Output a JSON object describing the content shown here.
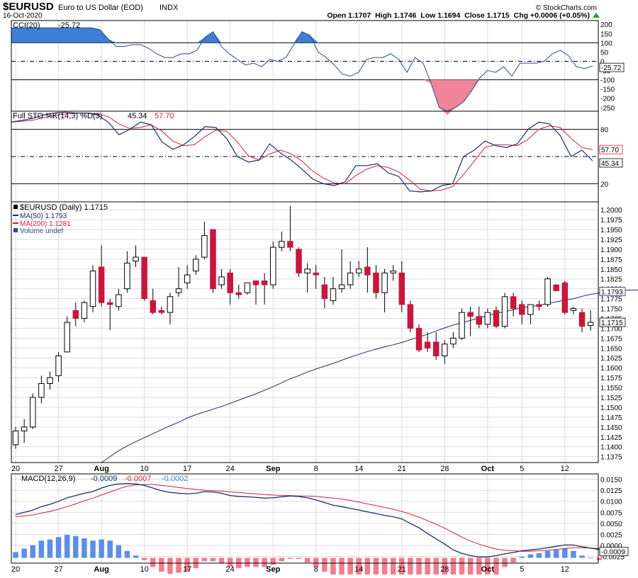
{
  "header": {
    "symbol": "$EURUSD",
    "description": "Euro to US Dollar (EOD)",
    "exchange": "INDX",
    "date": "16-Oct-2020",
    "ohlc_text": "Open 1.1707  High 1.1746  Low 1.1694  Close 1.1715  Chg +0.0006 (+0.05%)",
    "watermark": "© StockCharts.com",
    "change_arrow_icon": "up-triangle-icon"
  },
  "colors": {
    "frame": "#000000",
    "grid": "#dcdcdc",
    "line_primary": "#1c2d6b",
    "line_secondary": "#d11f3c",
    "candle_down": "#c8163c",
    "candle_up": "#ffffff",
    "cci_fill_above": "#3d7fd6",
    "cci_fill_below": "#f0849a",
    "macd_hist_pos": "#5b8ee6",
    "macd_hist_neg": "#f07c8e",
    "signal_label_color": "#3b88c8"
  },
  "chart_data": [
    {
      "type": "line",
      "panel": "cci",
      "legend_label": "CCI(20)",
      "legend_value": "-25.72",
      "last_value_label": "-25.72",
      "y_ticks": [
        "200",
        "150",
        "100",
        "50",
        "0",
        "-50",
        "-100",
        "-150",
        "-200",
        "-250"
      ],
      "ylim": [
        -270,
        220
      ],
      "reference_lines": [
        100,
        -100
      ],
      "dashed_line": 0,
      "series": [
        {
          "name": "CCI(20)",
          "values": [
            180,
            180,
            180,
            180,
            180,
            180,
            180,
            180,
            180,
            180,
            180,
            170,
            120,
            80,
            80,
            90,
            90,
            70,
            40,
            20,
            20,
            40,
            40,
            60,
            130,
            160,
            80,
            40,
            10,
            -20,
            -10,
            -30,
            10,
            0,
            20,
            90,
            160,
            140,
            50,
            20,
            -20,
            -70,
            -80,
            -60,
            10,
            20,
            20,
            40,
            10,
            -60,
            20,
            -10,
            -120,
            -250,
            -290,
            -250,
            -220,
            -160,
            -90,
            -50,
            -60,
            -30,
            -80,
            -10,
            -10,
            -10,
            0,
            40,
            60,
            30,
            -30,
            -40,
            -25.72
          ]
        }
      ]
    },
    {
      "type": "line",
      "panel": "stochastic",
      "legend_label": "Full STO %K(14,3) %D(3)",
      "legend_k_value": "45.34",
      "legend_d_value": "57.70",
      "value_label_d": "57.70",
      "value_label_k": "45.34",
      "y_ticks": [
        "80",
        "20"
      ],
      "ylim": [
        0,
        100
      ],
      "reference_lines": [
        80,
        20
      ],
      "dashed_line": 50,
      "series": [
        {
          "name": "%K",
          "values": [
            88,
            90,
            92,
            96,
            98,
            99,
            98,
            98,
            96,
            88,
            74,
            80,
            88,
            85,
            66,
            58,
            63,
            72,
            83,
            82,
            70,
            50,
            44,
            46,
            64,
            54,
            46,
            36,
            25,
            20,
            18,
            22,
            40,
            40,
            42,
            32,
            28,
            12,
            11,
            12,
            18,
            20,
            50,
            57,
            67,
            62,
            60,
            64,
            80,
            88,
            86,
            73,
            50,
            57,
            45.34
          ]
        },
        {
          "name": "%D",
          "values": [
            88,
            89,
            90,
            93,
            95,
            97,
            98,
            98,
            97,
            94,
            86,
            81,
            82,
            85,
            78,
            67,
            62,
            63,
            72,
            79,
            78,
            66,
            51,
            46,
            53,
            57,
            53,
            45,
            34,
            26,
            21,
            20,
            29,
            36,
            40,
            38,
            33,
            24,
            14,
            12,
            13,
            17,
            30,
            45,
            60,
            63,
            63,
            62,
            69,
            80,
            84,
            82,
            70,
            60,
            57.7
          ]
        }
      ]
    },
    {
      "type": "candlestick",
      "panel": "price",
      "legend_price": "$EURUSD (Daily) 1.1715",
      "legend_ma50": "MA(50) 1.1793",
      "legend_ma200": "MA(200) 1.1281",
      "legend_volume": "Volume undef",
      "last_label_close": "1.1715",
      "last_label_ma50": "1.1793",
      "y_ticks": [
        "1.2000",
        "1.1975",
        "1.1950",
        "1.1925",
        "1.1900",
        "1.1875",
        "1.1850",
        "1.1825",
        "1.1800",
        "1.1775",
        "1.1750",
        "1.1725",
        "1.1700",
        "1.1675",
        "1.1650",
        "1.1625",
        "1.1600",
        "1.1575",
        "1.1550",
        "1.1525",
        "1.1500",
        "1.1475",
        "1.1450",
        "1.1425",
        "1.1400",
        "1.1375"
      ],
      "ylim": [
        1.136,
        1.202
      ],
      "x_tick_labels": [
        "20",
        "27",
        "Aug",
        "10",
        "17",
        "24",
        "Sep",
        "8",
        "14",
        "21",
        "28",
        "Oct",
        "5",
        "12"
      ],
      "x_tick_index": [
        0,
        5,
        10,
        15,
        20,
        25,
        30,
        35,
        40,
        45,
        50,
        55,
        59,
        64
      ],
      "x_tick_bold": [
        false,
        false,
        true,
        false,
        false,
        false,
        true,
        false,
        false,
        false,
        false,
        true,
        false,
        false
      ],
      "candles": [
        {
          "o": 1.1405,
          "h": 1.145,
          "l": 1.1395,
          "c": 1.144
        },
        {
          "o": 1.144,
          "h": 1.147,
          "l": 1.141,
          "c": 1.145
        },
        {
          "o": 1.145,
          "h": 1.1535,
          "l": 1.1445,
          "c": 1.1525
        },
        {
          "o": 1.1525,
          "h": 1.158,
          "l": 1.151,
          "c": 1.156
        },
        {
          "o": 1.156,
          "h": 1.159,
          "l": 1.1545,
          "c": 1.1575
        },
        {
          "o": 1.158,
          "h": 1.164,
          "l": 1.1565,
          "c": 1.163
        },
        {
          "o": 1.164,
          "h": 1.173,
          "l": 1.164,
          "c": 1.1715
        },
        {
          "o": 1.1745,
          "h": 1.1765,
          "l": 1.1705,
          "c": 1.1725
        },
        {
          "o": 1.1725,
          "h": 1.177,
          "l": 1.1715,
          "c": 1.1765
        },
        {
          "o": 1.1755,
          "h": 1.186,
          "l": 1.174,
          "c": 1.1845
        },
        {
          "o": 1.1855,
          "h": 1.191,
          "l": 1.1755,
          "c": 1.1765
        },
        {
          "o": 1.1765,
          "h": 1.1775,
          "l": 1.1695,
          "c": 1.176
        },
        {
          "o": 1.1755,
          "h": 1.18,
          "l": 1.1745,
          "c": 1.1785
        },
        {
          "o": 1.18,
          "h": 1.1895,
          "l": 1.179,
          "c": 1.1865
        },
        {
          "o": 1.187,
          "h": 1.191,
          "l": 1.1855,
          "c": 1.188
        },
        {
          "o": 1.188,
          "h": 1.188,
          "l": 1.177,
          "c": 1.1775
        },
        {
          "o": 1.177,
          "h": 1.18,
          "l": 1.1735,
          "c": 1.174
        },
        {
          "o": 1.1745,
          "h": 1.1755,
          "l": 1.1735,
          "c": 1.174
        },
        {
          "o": 1.174,
          "h": 1.179,
          "l": 1.171,
          "c": 1.178
        },
        {
          "o": 1.179,
          "h": 1.1855,
          "l": 1.178,
          "c": 1.18
        },
        {
          "o": 1.1815,
          "h": 1.186,
          "l": 1.18,
          "c": 1.1835
        },
        {
          "o": 1.1845,
          "h": 1.1885,
          "l": 1.1835,
          "c": 1.1875
        },
        {
          "o": 1.188,
          "h": 1.197,
          "l": 1.1875,
          "c": 1.1935
        },
        {
          "o": 1.195,
          "h": 1.195,
          "l": 1.179,
          "c": 1.18
        },
        {
          "o": 1.181,
          "h": 1.185,
          "l": 1.18,
          "c": 1.183
        },
        {
          "o": 1.184,
          "h": 1.185,
          "l": 1.176,
          "c": 1.179
        },
        {
          "o": 1.179,
          "h": 1.181,
          "l": 1.1775,
          "c": 1.1785
        },
        {
          "o": 1.179,
          "h": 1.1815,
          "l": 1.1785,
          "c": 1.1815
        },
        {
          "o": 1.182,
          "h": 1.182,
          "l": 1.176,
          "c": 1.181
        },
        {
          "o": 1.182,
          "h": 1.184,
          "l": 1.176,
          "c": 1.181
        },
        {
          "o": 1.181,
          "h": 1.192,
          "l": 1.18,
          "c": 1.1905
        },
        {
          "o": 1.1905,
          "h": 1.1945,
          "l": 1.1895,
          "c": 1.192
        },
        {
          "o": 1.192,
          "h": 1.201,
          "l": 1.1895,
          "c": 1.1905
        },
        {
          "o": 1.19,
          "h": 1.1905,
          "l": 1.183,
          "c": 1.184
        },
        {
          "o": 1.184,
          "h": 1.1865,
          "l": 1.179,
          "c": 1.185
        },
        {
          "o": 1.184,
          "h": 1.186,
          "l": 1.18,
          "c": 1.1835
        },
        {
          "o": 1.181,
          "h": 1.183,
          "l": 1.175,
          "c": 1.1775
        },
        {
          "o": 1.177,
          "h": 1.183,
          "l": 1.176,
          "c": 1.18
        },
        {
          "o": 1.18,
          "h": 1.19,
          "l": 1.179,
          "c": 1.181
        },
        {
          "o": 1.181,
          "h": 1.187,
          "l": 1.18,
          "c": 1.184
        },
        {
          "o": 1.184,
          "h": 1.187,
          "l": 1.183,
          "c": 1.185
        },
        {
          "o": 1.1855,
          "h": 1.1905,
          "l": 1.179,
          "c": 1.1835
        },
        {
          "o": 1.184,
          "h": 1.186,
          "l": 1.1775,
          "c": 1.179
        },
        {
          "o": 1.179,
          "h": 1.185,
          "l": 1.174,
          "c": 1.184
        },
        {
          "o": 1.184,
          "h": 1.186,
          "l": 1.182,
          "c": 1.1845
        },
        {
          "o": 1.184,
          "h": 1.187,
          "l": 1.174,
          "c": 1.176
        },
        {
          "o": 1.176,
          "h": 1.177,
          "l": 1.169,
          "c": 1.17
        },
        {
          "o": 1.17,
          "h": 1.171,
          "l": 1.164,
          "c": 1.1645
        },
        {
          "o": 1.1665,
          "h": 1.169,
          "l": 1.164,
          "c": 1.165
        },
        {
          "o": 1.1665,
          "h": 1.169,
          "l": 1.162,
          "c": 1.163
        },
        {
          "o": 1.163,
          "h": 1.167,
          "l": 1.161,
          "c": 1.166
        },
        {
          "o": 1.166,
          "h": 1.169,
          "l": 1.165,
          "c": 1.1675
        },
        {
          "o": 1.1675,
          "h": 1.175,
          "l": 1.167,
          "c": 1.174
        },
        {
          "o": 1.174,
          "h": 1.1755,
          "l": 1.168,
          "c": 1.173
        },
        {
          "o": 1.173,
          "h": 1.1755,
          "l": 1.17,
          "c": 1.171
        },
        {
          "o": 1.171,
          "h": 1.175,
          "l": 1.17,
          "c": 1.174
        },
        {
          "o": 1.1745,
          "h": 1.1755,
          "l": 1.17,
          "c": 1.1705
        },
        {
          "o": 1.1705,
          "h": 1.179,
          "l": 1.17,
          "c": 1.178
        },
        {
          "o": 1.178,
          "h": 1.179,
          "l": 1.173,
          "c": 1.175
        },
        {
          "o": 1.176,
          "h": 1.177,
          "l": 1.171,
          "c": 1.1735
        },
        {
          "o": 1.1735,
          "h": 1.176,
          "l": 1.171,
          "c": 1.176
        },
        {
          "o": 1.176,
          "h": 1.177,
          "l": 1.1745,
          "c": 1.1755
        },
        {
          "o": 1.176,
          "h": 1.183,
          "l": 1.1755,
          "c": 1.1825
        },
        {
          "o": 1.181,
          "h": 1.181,
          "l": 1.1795,
          "c": 1.1795
        },
        {
          "o": 1.1815,
          "h": 1.182,
          "l": 1.1735,
          "c": 1.174
        },
        {
          "o": 1.1745,
          "h": 1.1755,
          "l": 1.1735,
          "c": 1.175
        },
        {
          "o": 1.174,
          "h": 1.175,
          "l": 1.169,
          "c": 1.1705
        },
        {
          "o": 1.1707,
          "h": 1.1746,
          "l": 1.1694,
          "c": 1.1715
        }
      ],
      "ma50": {
        "start_index": 10,
        "values": [
          1.136,
          1.1375,
          1.139,
          1.1402,
          1.1413,
          1.1423,
          1.1433,
          1.1443,
          1.1453,
          1.1462,
          1.1473,
          1.1481,
          1.1488,
          1.1495,
          1.1502,
          1.151,
          1.1518,
          1.1526,
          1.1534,
          1.1543,
          1.1552,
          1.1562,
          1.1572,
          1.158,
          1.1589,
          1.1597,
          1.1604,
          1.1611,
          1.1619,
          1.1627,
          1.1634,
          1.1641,
          1.1647,
          1.1653,
          1.1658,
          1.1664,
          1.1671,
          1.1678,
          1.1685,
          1.1693,
          1.1701,
          1.1708,
          1.1714,
          1.172,
          1.1726,
          1.1732,
          1.1738,
          1.1742,
          1.1747,
          1.1752,
          1.1755,
          1.1758,
          1.1763,
          1.1767,
          1.1771,
          1.1775,
          1.1781,
          1.1786,
          1.1789,
          1.1793,
          1.1795,
          1.1796,
          1.1797,
          1.1796,
          1.1795,
          1.1794,
          1.1793,
          1.1793
        ]
      }
    },
    {
      "type": "line",
      "panel": "macd",
      "legend_label": "MACD(12,26,9)",
      "legend_macd": "-0.0009",
      "legend_signal": "-0.0007",
      "legend_hist": "-0.0002",
      "last_value_label": "-0.0009",
      "y_ticks": [
        "0.0150",
        "0.0125",
        "0.0100",
        "0.0075",
        "0.0050",
        "0.0025",
        "0.0000",
        "-0.0025"
      ],
      "ylim": [
        -0.004,
        0.0162
      ],
      "x_tick_labels": [
        "20",
        "27",
        "Aug",
        "10",
        "17",
        "24",
        "Sep",
        "8",
        "14",
        "21",
        "28",
        "Oct",
        "5",
        "12"
      ],
      "series": [
        {
          "name": "MACD",
          "values": [
            0.007,
            0.0075,
            0.008,
            0.0088,
            0.0093,
            0.01,
            0.0108,
            0.0113,
            0.0118,
            0.0122,
            0.013,
            0.0136,
            0.0139,
            0.014,
            0.0139,
            0.0136,
            0.013,
            0.0124,
            0.012,
            0.0118,
            0.0117,
            0.0118,
            0.0122,
            0.0121,
            0.0118,
            0.0113,
            0.0111,
            0.011,
            0.0109,
            0.0107,
            0.0108,
            0.011,
            0.0112,
            0.0111,
            0.0108,
            0.0103,
            0.0097,
            0.0091,
            0.0088,
            0.0084,
            0.008,
            0.0076,
            0.0072,
            0.0068,
            0.0065,
            0.006,
            0.005,
            0.004,
            0.0027,
            0.0015,
            0.0003,
            -0.001,
            -0.0018,
            -0.0023,
            -0.0026,
            -0.0026,
            -0.0023,
            -0.0019,
            -0.0016,
            -0.0012,
            -0.001,
            -0.0008,
            -0.0005,
            -0.0002,
            0.0001,
            0.0001,
            -0.0003,
            -0.0006,
            -0.0009
          ]
        },
        {
          "name": "Signal",
          "values": [
            0.0065,
            0.0067,
            0.0069,
            0.0073,
            0.0077,
            0.0082,
            0.0088,
            0.0094,
            0.0101,
            0.0107,
            0.0114,
            0.0121,
            0.0128,
            0.0134,
            0.0137,
            0.0138,
            0.0138,
            0.0136,
            0.0134,
            0.0131,
            0.0129,
            0.0127,
            0.0125,
            0.0124,
            0.0123,
            0.0121,
            0.012,
            0.0118,
            0.0117,
            0.0115,
            0.0114,
            0.0113,
            0.0113,
            0.0112,
            0.0112,
            0.0111,
            0.0109,
            0.0107,
            0.0105,
            0.0102,
            0.0098,
            0.0094,
            0.009,
            0.0086,
            0.0082,
            0.0077,
            0.0071,
            0.0064,
            0.0056,
            0.0048,
            0.0039,
            0.0029,
            0.0019,
            0.001,
            0.0003,
            -0.0003,
            -0.0008,
            -0.0011,
            -0.0012,
            -0.0013,
            -0.0013,
            -0.0012,
            -0.0011,
            -0.0009,
            -0.0007,
            -0.0005,
            -0.0005,
            -0.0006,
            -0.0007
          ]
        }
      ],
      "histogram": [
        0.0005,
        0.0008,
        0.0011,
        0.0015,
        0.0016,
        0.0018,
        0.002,
        0.0019,
        0.0017,
        0.0015,
        0.0016,
        0.0015,
        0.0011,
        0.0006,
        0.0002,
        -0.0002,
        -0.0008,
        -0.0012,
        -0.0014,
        -0.0013,
        -0.0012,
        -0.0009,
        -0.0003,
        -0.0003,
        -0.0005,
        -0.0008,
        -0.0009,
        -0.0008,
        -0.0008,
        -0.0008,
        -0.0006,
        -0.0003,
        -0.0001,
        -0.0001,
        -0.0004,
        -0.0008,
        -0.0012,
        -0.0016,
        -0.0017,
        -0.0018,
        -0.0018,
        -0.0018,
        -0.0018,
        -0.0018,
        -0.0017,
        -0.0017,
        -0.0021,
        -0.0024,
        -0.0029,
        -0.0033,
        -0.0036,
        -0.0039,
        -0.0037,
        -0.0033,
        -0.0029,
        -0.0023,
        -0.0015,
        -0.0008,
        -0.0004,
        0.0001,
        0.0003,
        0.0004,
        0.0006,
        0.0007,
        0.0008,
        0.0006,
        0.0002,
        0.0,
        -0.0002
      ]
    }
  ]
}
